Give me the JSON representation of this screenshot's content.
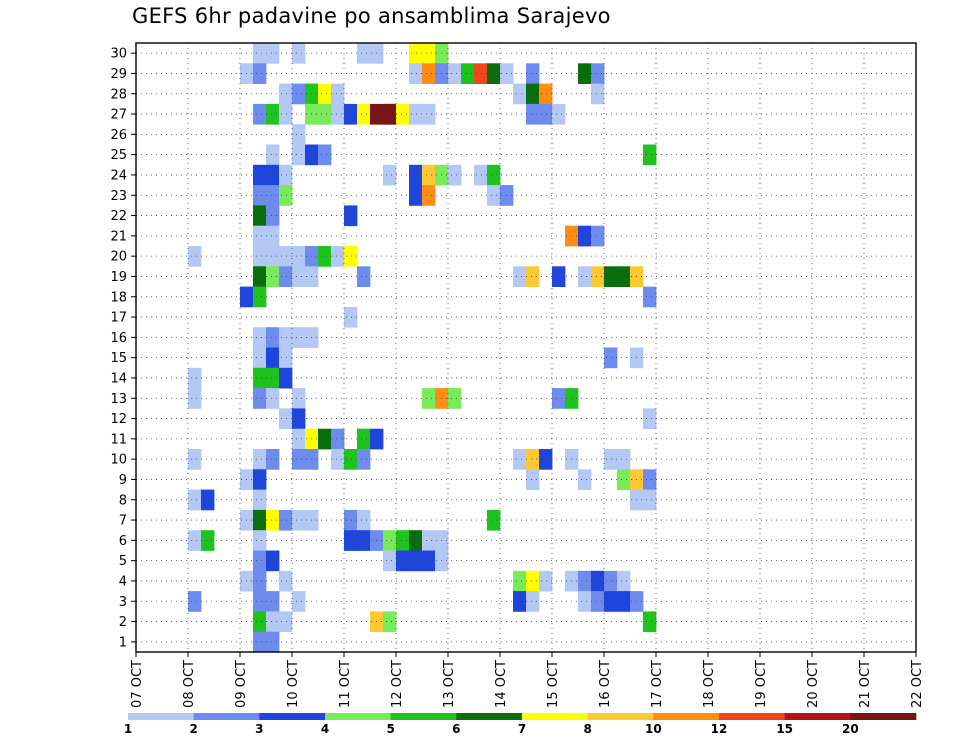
{
  "chart_data": {
    "type": "heatmap",
    "title": "GEFS 6hr padavine po ansamblima Sarajevo",
    "x_ticks": [
      "07 OCT",
      "08 OCT",
      "09 OCT",
      "10 OCT",
      "11 OCT",
      "12 OCT",
      "13 OCT",
      "14 OCT",
      "15 OCT",
      "16 OCT",
      "17 OCT",
      "18 OCT",
      "19 OCT",
      "20 OCT",
      "21 OCT",
      "22 OCT"
    ],
    "x_range_days": [
      0,
      15
    ],
    "x_step_hours": 6,
    "y_ticks": [
      1,
      2,
      3,
      4,
      5,
      6,
      7,
      8,
      9,
      10,
      11,
      12,
      13,
      14,
      15,
      16,
      17,
      18,
      19,
      20,
      21,
      22,
      23,
      24,
      25,
      26,
      27,
      28,
      29,
      30
    ],
    "y_range": [
      0.5,
      30.5
    ],
    "grid": true,
    "colorbar": {
      "boundaries": [
        1,
        2,
        3,
        4,
        5,
        6,
        7,
        8,
        10,
        12,
        15,
        20
      ],
      "labels": [
        "1",
        "2",
        "3",
        "4",
        "5",
        "6",
        "7",
        "8",
        "10",
        "12",
        "15",
        "20"
      ],
      "colors": [
        "#b4c8f5",
        "#6e8ced",
        "#1e46dc",
        "#78eb5a",
        "#1ec31e",
        "#0a6e0a",
        "#ffff00",
        "#ffc832",
        "#ff8c14",
        "#f0461e",
        "#b41414",
        "#781414"
      ]
    },
    "points": [
      [
        30,
        [
          [
            9,
            0
          ],
          [
            10,
            0
          ],
          [
            12,
            0
          ],
          [
            17,
            0
          ],
          [
            18,
            0
          ],
          [
            21,
            6
          ],
          [
            22,
            6
          ],
          [
            23,
            3
          ]
        ]
      ],
      [
        29,
        [
          [
            8,
            0
          ],
          [
            9,
            1
          ],
          [
            21,
            0
          ],
          [
            22,
            8
          ],
          [
            23,
            1
          ],
          [
            24,
            0
          ],
          [
            25,
            4
          ],
          [
            26,
            9
          ],
          [
            27,
            5
          ],
          [
            28,
            0
          ],
          [
            30,
            1
          ],
          [
            34,
            5
          ],
          [
            35,
            1
          ]
        ]
      ],
      [
        28,
        [
          [
            11,
            0
          ],
          [
            12,
            1
          ],
          [
            13,
            4
          ],
          [
            14,
            6
          ],
          [
            15,
            0
          ],
          [
            29,
            0
          ],
          [
            30,
            5
          ],
          [
            31,
            8
          ],
          [
            35,
            0
          ]
        ]
      ],
      [
        27,
        [
          [
            9,
            1
          ],
          [
            10,
            4
          ],
          [
            11,
            0
          ],
          [
            13,
            3
          ],
          [
            14,
            3
          ],
          [
            15,
            0
          ],
          [
            16,
            2
          ],
          [
            17,
            6
          ],
          [
            18,
            11
          ],
          [
            19,
            11
          ],
          [
            20,
            6
          ],
          [
            21,
            0
          ],
          [
            22,
            0
          ],
          [
            19,
            11
          ],
          [
            20,
            6
          ],
          [
            21,
            0
          ],
          [
            22,
            0
          ],
          [
            30,
            1
          ],
          [
            31,
            1
          ],
          [
            32,
            0
          ]
        ]
      ],
      [
        26,
        [
          [
            12,
            0
          ]
        ]
      ],
      [
        25,
        [
          [
            10,
            0
          ],
          [
            12,
            0
          ],
          [
            13,
            2
          ],
          [
            14,
            1
          ],
          [
            39,
            4
          ]
        ]
      ],
      [
        24,
        [
          [
            9,
            2
          ],
          [
            10,
            2
          ],
          [
            11,
            0
          ],
          [
            19,
            0
          ],
          [
            21,
            2
          ],
          [
            22,
            7
          ],
          [
            23,
            3
          ],
          [
            24,
            0
          ],
          [
            26,
            0
          ],
          [
            27,
            4
          ]
        ]
      ],
      [
        23,
        [
          [
            9,
            1
          ],
          [
            10,
            1
          ],
          [
            11,
            3
          ],
          [
            21,
            2
          ],
          [
            22,
            8
          ],
          [
            27,
            0
          ],
          [
            28,
            1
          ]
        ]
      ],
      [
        22,
        [
          [
            9,
            5
          ],
          [
            10,
            1
          ],
          [
            16,
            2
          ]
        ]
      ],
      [
        21,
        [
          [
            9,
            0
          ],
          [
            10,
            0
          ],
          [
            33,
            8
          ],
          [
            34,
            2
          ],
          [
            35,
            1
          ]
        ]
      ],
      [
        20,
        [
          [
            4,
            0
          ],
          [
            9,
            0
          ],
          [
            10,
            0
          ],
          [
            11,
            0
          ],
          [
            12,
            0
          ],
          [
            13,
            1
          ],
          [
            14,
            4
          ],
          [
            15,
            0
          ],
          [
            16,
            6
          ]
        ]
      ],
      [
        19,
        [
          [
            9,
            5
          ],
          [
            10,
            3
          ],
          [
            11,
            1
          ],
          [
            12,
            0
          ],
          [
            13,
            0
          ],
          [
            17,
            1
          ],
          [
            29,
            0
          ],
          [
            30,
            7
          ],
          [
            32,
            2
          ],
          [
            34,
            0
          ],
          [
            35,
            7
          ],
          [
            36,
            5
          ],
          [
            37,
            5
          ],
          [
            38,
            7
          ]
        ]
      ],
      [
        18,
        [
          [
            8,
            2
          ],
          [
            9,
            4
          ],
          [
            39,
            1
          ]
        ]
      ],
      [
        17,
        [
          [
            16,
            0
          ]
        ]
      ],
      [
        16,
        [
          [
            9,
            0
          ],
          [
            10,
            1
          ],
          [
            11,
            0
          ],
          [
            12,
            0
          ],
          [
            13,
            0
          ]
        ]
      ],
      [
        15,
        [
          [
            9,
            0
          ],
          [
            10,
            2
          ],
          [
            11,
            0
          ],
          [
            36,
            1
          ],
          [
            38,
            0
          ]
        ]
      ],
      [
        14,
        [
          [
            4,
            0
          ],
          [
            9,
            4
          ],
          [
            10,
            4
          ],
          [
            11,
            2
          ]
        ]
      ],
      [
        13,
        [
          [
            4,
            0
          ],
          [
            9,
            1
          ],
          [
            10,
            0
          ],
          [
            12,
            0
          ],
          [
            22,
            3
          ],
          [
            23,
            8
          ],
          [
            24,
            3
          ],
          [
            32,
            1
          ],
          [
            33,
            4
          ]
        ]
      ],
      [
        12,
        [
          [
            11,
            0
          ],
          [
            12,
            2
          ],
          [
            39,
            0
          ]
        ]
      ],
      [
        11,
        [
          [
            12,
            0
          ],
          [
            13,
            6
          ],
          [
            14,
            5
          ],
          [
            15,
            1
          ],
          [
            17,
            4
          ],
          [
            18,
            2
          ]
        ]
      ],
      [
        10,
        [
          [
            4,
            0
          ],
          [
            9,
            0
          ],
          [
            10,
            1
          ],
          [
            12,
            1
          ],
          [
            13,
            1
          ],
          [
            15,
            0
          ],
          [
            16,
            4
          ],
          [
            17,
            1
          ],
          [
            29,
            0
          ],
          [
            30,
            7
          ],
          [
            31,
            2
          ],
          [
            33,
            0
          ],
          [
            36,
            0
          ],
          [
            37,
            0
          ]
        ]
      ],
      [
        9,
        [
          [
            8,
            0
          ],
          [
            9,
            2
          ],
          [
            30,
            0
          ],
          [
            34,
            0
          ],
          [
            37,
            3
          ],
          [
            38,
            7
          ],
          [
            39,
            1
          ]
        ]
      ],
      [
        8,
        [
          [
            4,
            0
          ],
          [
            5,
            2
          ],
          [
            9,
            0
          ],
          [
            38,
            0
          ],
          [
            39,
            0
          ]
        ]
      ],
      [
        7,
        [
          [
            8,
            0
          ],
          [
            9,
            5
          ],
          [
            10,
            6
          ],
          [
            11,
            1
          ],
          [
            12,
            0
          ],
          [
            13,
            0
          ],
          [
            16,
            1
          ],
          [
            17,
            0
          ],
          [
            27,
            4
          ]
        ]
      ],
      [
        6,
        [
          [
            4,
            0
          ],
          [
            5,
            4
          ],
          [
            9,
            0
          ],
          [
            16,
            2
          ],
          [
            17,
            2
          ],
          [
            18,
            1
          ],
          [
            19,
            3
          ],
          [
            20,
            4
          ],
          [
            21,
            5
          ],
          [
            22,
            0
          ],
          [
            23,
            0
          ]
        ]
      ],
      [
        5,
        [
          [
            9,
            1
          ],
          [
            10,
            2
          ],
          [
            19,
            0
          ],
          [
            20,
            2
          ],
          [
            21,
            2
          ],
          [
            22,
            2
          ],
          [
            23,
            0
          ]
        ]
      ],
      [
        4,
        [
          [
            8,
            0
          ],
          [
            9,
            1
          ],
          [
            11,
            0
          ],
          [
            29,
            3
          ],
          [
            30,
            6
          ],
          [
            31,
            0
          ],
          [
            33,
            0
          ],
          [
            34,
            1
          ],
          [
            35,
            2
          ],
          [
            36,
            1
          ],
          [
            37,
            0
          ]
        ]
      ],
      [
        3,
        [
          [
            4,
            1
          ],
          [
            9,
            1
          ],
          [
            10,
            1
          ],
          [
            12,
            0
          ],
          [
            29,
            2
          ],
          [
            30,
            0
          ],
          [
            34,
            0
          ],
          [
            35,
            1
          ],
          [
            36,
            2
          ],
          [
            37,
            2
          ],
          [
            38,
            1
          ]
        ]
      ],
      [
        2,
        [
          [
            9,
            4
          ],
          [
            10,
            0
          ],
          [
            11,
            0
          ],
          [
            18,
            7
          ],
          [
            19,
            3
          ],
          [
            39,
            4
          ]
        ]
      ],
      [
        1,
        [
          [
            9,
            1
          ],
          [
            10,
            1
          ]
        ]
      ]
    ]
  }
}
